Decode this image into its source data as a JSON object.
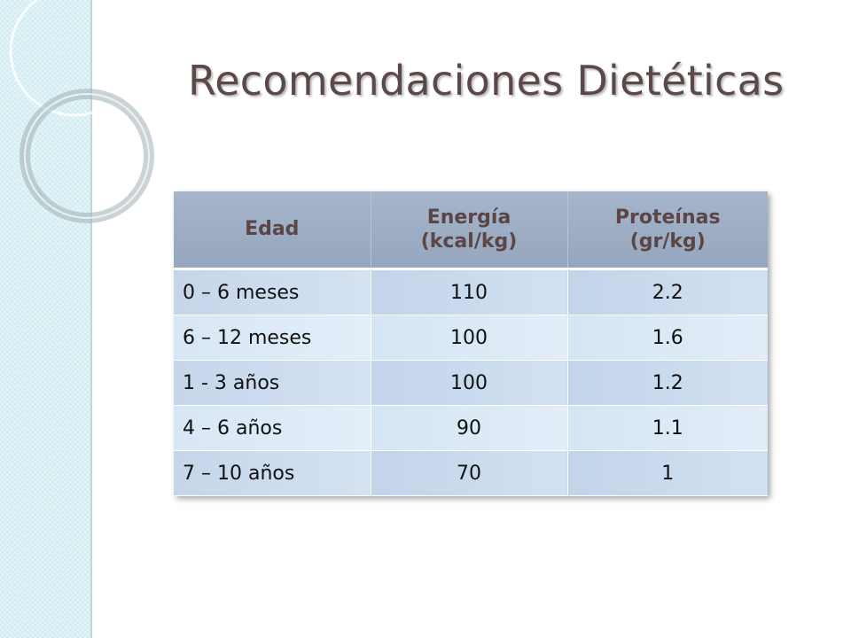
{
  "slide": {
    "title": "Recomendaciones Dietéticas"
  },
  "table": {
    "headers": [
      "Edad",
      "Energía (kcal/kg)",
      "Proteínas (gr/kg)"
    ],
    "rows": [
      [
        "0 – 6 meses",
        "110",
        "2.2"
      ],
      [
        "6 – 12 meses",
        "100",
        "1.6"
      ],
      [
        "1 - 3 años",
        "100",
        "1.2"
      ],
      [
        "4 – 6 años",
        "90",
        "1.1"
      ],
      [
        "7 – 10 años",
        "70",
        "1"
      ]
    ]
  },
  "colors": {
    "title": "#5c4848",
    "header_bg": "#9dadc4",
    "cell_bg": "#cddcef",
    "side_strip": "#d2ecf2"
  }
}
